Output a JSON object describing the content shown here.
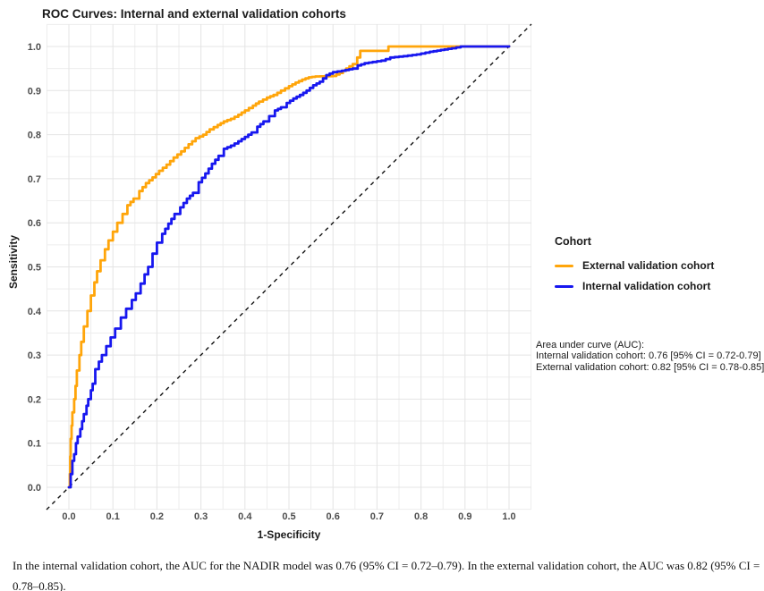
{
  "title": "ROC Curves: Internal and external validation cohorts",
  "chart_data": {
    "type": "line",
    "subtype": "roc-step-curves",
    "title": "ROC Curves: Internal and external validation cohorts",
    "xlabel": "1-Specificity",
    "ylabel": "Sensitivity",
    "xlim": [
      0,
      1
    ],
    "ylim": [
      0,
      1
    ],
    "x_ticks": [
      "0.0",
      "0.1",
      "0.2",
      "0.3",
      "0.4",
      "0.5",
      "0.6",
      "0.7",
      "0.8",
      "0.9",
      "1.0"
    ],
    "y_ticks": [
      "0.0",
      "0.1",
      "0.2",
      "0.3",
      "0.4",
      "0.5",
      "0.6",
      "0.7",
      "0.8",
      "0.9",
      "1.0"
    ],
    "grid": "major and minor on, light gray, white background",
    "legend_position": "right",
    "legend_title": "Cohort",
    "reference_line": {
      "name": "chance-diagonal",
      "style": "dashed",
      "color": "#111111",
      "from": [
        0,
        0
      ],
      "to": [
        1,
        1
      ]
    },
    "series": [
      {
        "name": "External validation cohort",
        "color": "#FFA50A",
        "auc": "0.82 [95% CI = 0.78-0.85]",
        "points": [
          [
            0,
            0
          ],
          [
            0.002,
            0.03
          ],
          [
            0.003,
            0.07
          ],
          [
            0.004,
            0.11
          ],
          [
            0.006,
            0.14
          ],
          [
            0.008,
            0.17
          ],
          [
            0.012,
            0.2
          ],
          [
            0.015,
            0.23
          ],
          [
            0.018,
            0.265
          ],
          [
            0.024,
            0.3
          ],
          [
            0.028,
            0.33
          ],
          [
            0.034,
            0.365
          ],
          [
            0.042,
            0.4
          ],
          [
            0.05,
            0.435
          ],
          [
            0.058,
            0.465
          ],
          [
            0.064,
            0.49
          ],
          [
            0.072,
            0.515
          ],
          [
            0.082,
            0.54
          ],
          [
            0.09,
            0.56
          ],
          [
            0.1,
            0.58
          ],
          [
            0.11,
            0.6
          ],
          [
            0.122,
            0.62
          ],
          [
            0.133,
            0.64
          ],
          [
            0.147,
            0.655
          ],
          [
            0.16,
            0.672
          ],
          [
            0.175,
            0.69
          ],
          [
            0.19,
            0.703
          ],
          [
            0.205,
            0.718
          ],
          [
            0.222,
            0.732
          ],
          [
            0.238,
            0.748
          ],
          [
            0.255,
            0.762
          ],
          [
            0.272,
            0.778
          ],
          [
            0.288,
            0.792
          ],
          [
            0.305,
            0.8
          ],
          [
            0.32,
            0.812
          ],
          [
            0.338,
            0.822
          ],
          [
            0.352,
            0.83
          ],
          [
            0.368,
            0.836
          ],
          [
            0.385,
            0.845
          ],
          [
            0.4,
            0.855
          ],
          [
            0.418,
            0.866
          ],
          [
            0.432,
            0.875
          ],
          [
            0.45,
            0.884
          ],
          [
            0.465,
            0.89
          ],
          [
            0.482,
            0.9
          ],
          [
            0.5,
            0.91
          ],
          [
            0.515,
            0.918
          ],
          [
            0.53,
            0.925
          ],
          [
            0.545,
            0.93
          ],
          [
            0.56,
            0.932
          ],
          [
            0.6,
            0.933
          ],
          [
            0.615,
            0.94
          ],
          [
            0.63,
            0.95
          ],
          [
            0.645,
            0.96
          ],
          [
            0.655,
            0.975
          ],
          [
            0.662,
            0.99
          ],
          [
            0.72,
            0.99
          ],
          [
            0.726,
            1
          ],
          [
            1,
            1
          ]
        ]
      },
      {
        "name": "Internal validation cohort",
        "color": "#1717EF",
        "auc": "0.76 [95% CI = 0.72-0.79]",
        "points": [
          [
            0,
            0
          ],
          [
            0.004,
            0.03
          ],
          [
            0.008,
            0.06
          ],
          [
            0.012,
            0.075
          ],
          [
            0.016,
            0.1
          ],
          [
            0.02,
            0.115
          ],
          [
            0.026,
            0.132
          ],
          [
            0.03,
            0.15
          ],
          [
            0.034,
            0.166
          ],
          [
            0.04,
            0.185
          ],
          [
            0.044,
            0.2
          ],
          [
            0.05,
            0.22
          ],
          [
            0.054,
            0.235
          ],
          [
            0.06,
            0.268
          ],
          [
            0.068,
            0.285
          ],
          [
            0.075,
            0.3
          ],
          [
            0.085,
            0.32
          ],
          [
            0.095,
            0.34
          ],
          [
            0.105,
            0.36
          ],
          [
            0.118,
            0.385
          ],
          [
            0.13,
            0.405
          ],
          [
            0.143,
            0.425
          ],
          [
            0.152,
            0.44
          ],
          [
            0.163,
            0.462
          ],
          [
            0.172,
            0.483
          ],
          [
            0.18,
            0.5
          ],
          [
            0.19,
            0.53
          ],
          [
            0.2,
            0.555
          ],
          [
            0.212,
            0.575
          ],
          [
            0.226,
            0.598
          ],
          [
            0.24,
            0.62
          ],
          [
            0.253,
            0.635
          ],
          [
            0.268,
            0.655
          ],
          [
            0.282,
            0.668
          ],
          [
            0.295,
            0.692
          ],
          [
            0.31,
            0.712
          ],
          [
            0.325,
            0.734
          ],
          [
            0.34,
            0.752
          ],
          [
            0.352,
            0.768
          ],
          [
            0.368,
            0.775
          ],
          [
            0.385,
            0.785
          ],
          [
            0.4,
            0.795
          ],
          [
            0.415,
            0.805
          ],
          [
            0.428,
            0.818
          ],
          [
            0.442,
            0.83
          ],
          [
            0.455,
            0.842
          ],
          [
            0.468,
            0.855
          ],
          [
            0.482,
            0.862
          ],
          [
            0.495,
            0.872
          ],
          [
            0.51,
            0.882
          ],
          [
            0.525,
            0.89
          ],
          [
            0.54,
            0.9
          ],
          [
            0.555,
            0.912
          ],
          [
            0.57,
            0.92
          ],
          [
            0.585,
            0.935
          ],
          [
            0.6,
            0.942
          ],
          [
            0.62,
            0.945
          ],
          [
            0.645,
            0.95
          ],
          [
            0.656,
            0.957
          ],
          [
            0.672,
            0.962
          ],
          [
            0.69,
            0.965
          ],
          [
            0.71,
            0.968
          ],
          [
            0.73,
            0.975
          ],
          [
            0.76,
            0.978
          ],
          [
            0.79,
            0.982
          ],
          [
            0.82,
            0.988
          ],
          [
            0.845,
            0.992
          ],
          [
            0.87,
            0.996
          ],
          [
            0.89,
            1
          ],
          [
            1,
            1
          ]
        ]
      }
    ],
    "annotation": {
      "line1": "Area under curve (AUC):",
      "line2": "Internal validation cohort: 0.76 [95% CI = 0.72-0.79]",
      "line3": "External validation cohort: 0.82 [95% CI = 0.78-0.85]"
    }
  },
  "caption": {
    "line1": "In the internal validation cohort, the AUC for the NADIR model was 0.76 (95% CI = 0.72–0.79). In the external validation cohort, the AUC was 0.82 (95% CI =",
    "line2": "0.78–0.85)."
  },
  "colors": {
    "external_curve": "#FFA50A",
    "internal_curve": "#1717EF",
    "diagonal": "#111111",
    "grid_major": "#e4e4e4",
    "grid_minor": "#ededed",
    "tick_text": "#4d4d4d"
  }
}
